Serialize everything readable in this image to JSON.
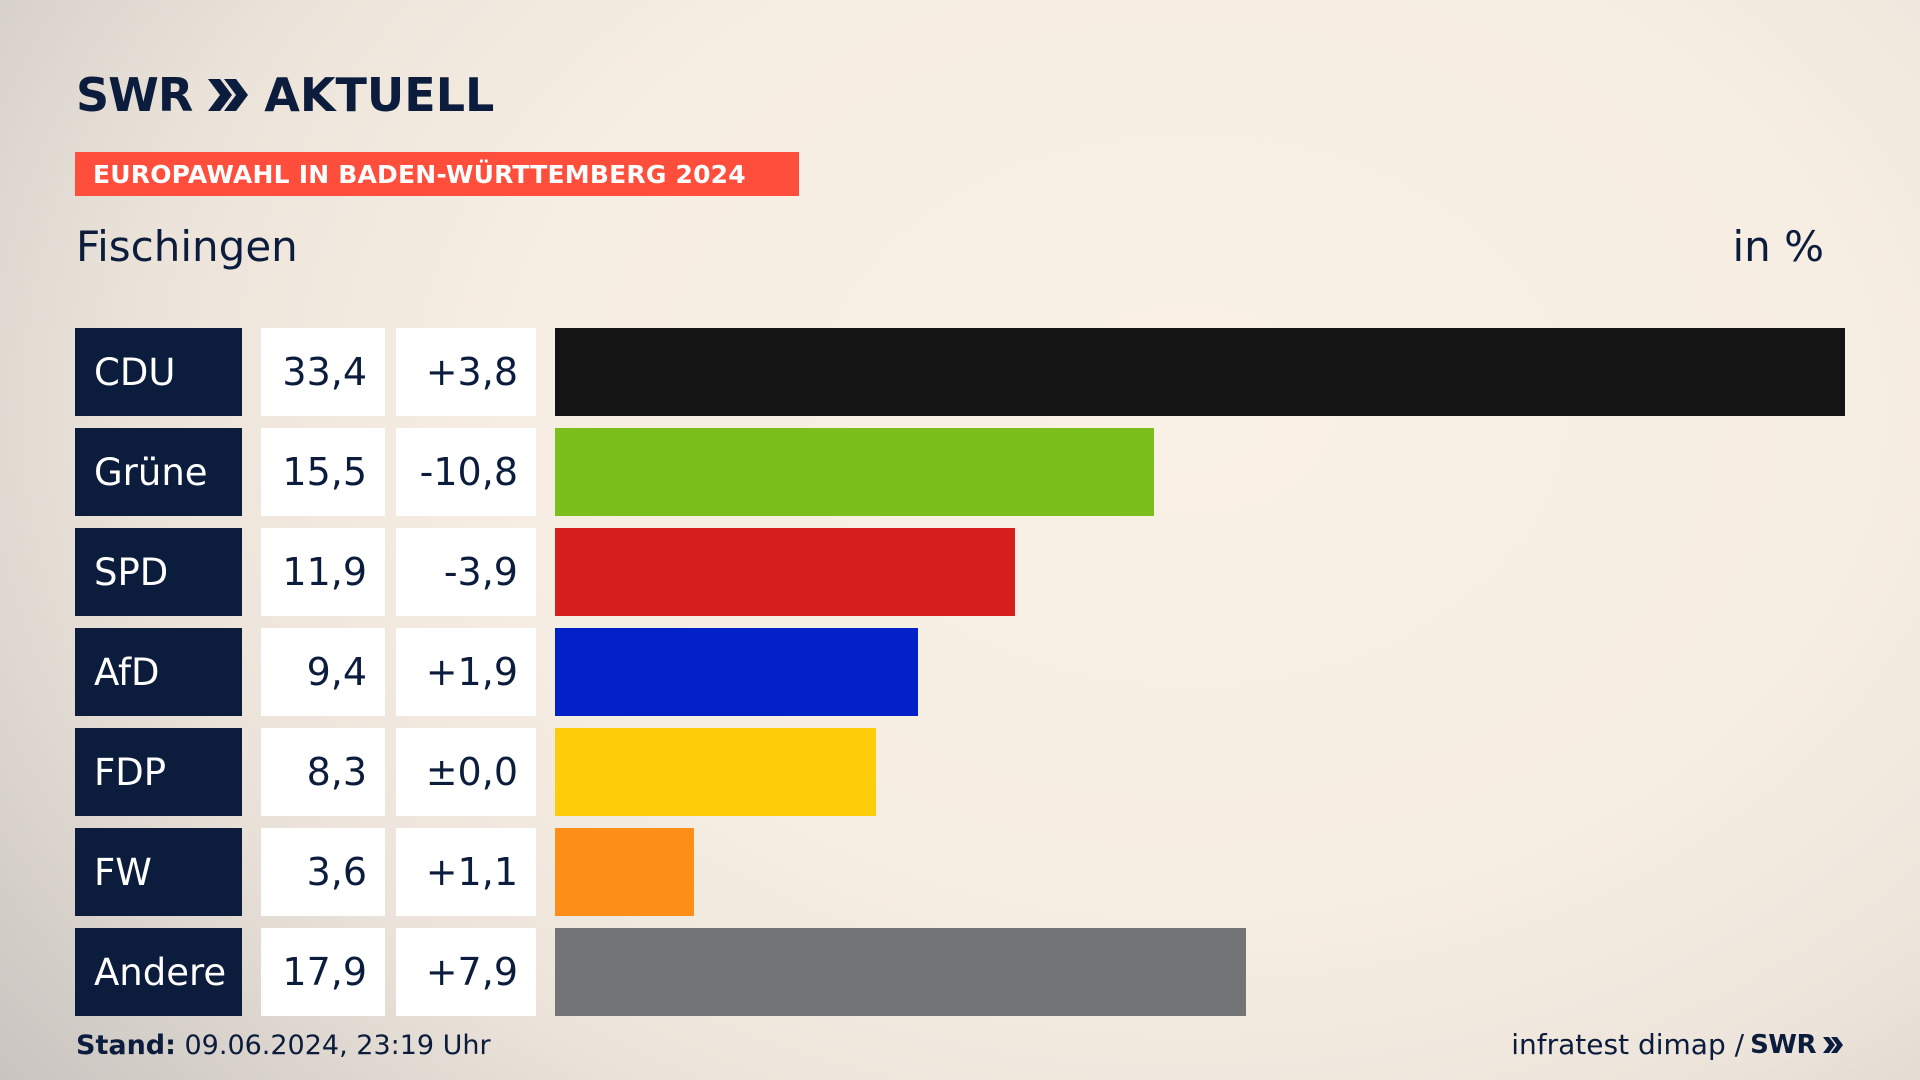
{
  "header": {
    "logo_text_1": "SWR",
    "logo_text_2": "AKTUELL",
    "banner": "EUROPAWAHL IN BADEN-WÜRTTEMBERG 2024",
    "place": "Fischingen",
    "unit": "in %"
  },
  "colors": {
    "navy": "#0b1c3c",
    "banner": "#ff4e3c"
  },
  "chart_data": {
    "type": "bar",
    "orientation": "horizontal",
    "title": "Fischingen",
    "unit": "in %",
    "categories": [
      "CDU",
      "Grüne",
      "SPD",
      "AfD",
      "FDP",
      "FW",
      "Andere"
    ],
    "values": [
      33.4,
      15.5,
      11.9,
      9.4,
      8.3,
      3.6,
      17.9
    ],
    "value_labels": [
      "33,4",
      "15,5",
      "11,9",
      "9,4",
      "8,3",
      "3,6",
      "17,9"
    ],
    "change_labels": [
      "+3,8",
      "-10,8",
      "-3,9",
      "+1,9",
      "±0,0",
      "+1,1",
      "+7,9"
    ],
    "changes": [
      3.8,
      -10.8,
      -3.9,
      1.9,
      0.0,
      1.1,
      7.9
    ],
    "colors": [
      "#141414",
      "#7abf1c",
      "#d81f1f",
      "#0222c8",
      "#fdcd0a",
      "#fd8f18",
      "#737476"
    ],
    "xlim": [
      0,
      33.4
    ]
  },
  "footer": {
    "stand_label": "Stand:",
    "stand_value": " 09.06.2024, 23:19 Uhr",
    "source": "infratest dimap /",
    "source_brand": "SWR"
  }
}
